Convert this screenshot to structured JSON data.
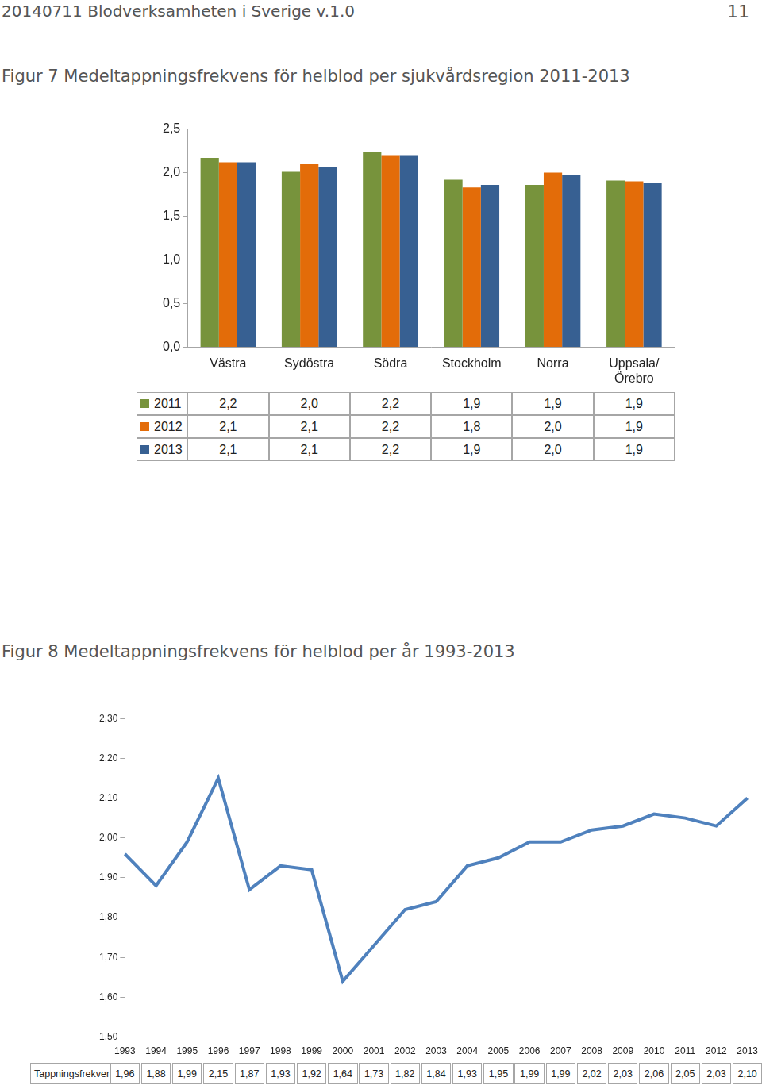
{
  "header": {
    "text": "20140711 Blodverksamheten i Sverige v.1.0",
    "page": "11"
  },
  "chart_data": [
    {
      "type": "bar",
      "title": "Figur 7 Medeltappningsfrekvens för helblod per sjukvårdsregion 2011-2013",
      "categories": [
        "Västra",
        "Sydöstra",
        "Södra",
        "Stockholm",
        "Norra",
        "Uppsala/ Örebro"
      ],
      "series": [
        {
          "name": "2011",
          "color": "#77933c",
          "values": [
            2.17,
            2.01,
            2.24,
            1.92,
            1.86,
            1.91
          ],
          "value_labels": [
            "2,2",
            "2,0",
            "2,2",
            "1,9",
            "1,9",
            "1,9"
          ]
        },
        {
          "name": "2012",
          "color": "#e36c09",
          "values": [
            2.12,
            2.1,
            2.2,
            1.83,
            2.0,
            1.9
          ],
          "value_labels": [
            "2,1",
            "2,1",
            "2,2",
            "1,8",
            "2,0",
            "1,9"
          ]
        },
        {
          "name": "2013",
          "color": "#376092",
          "values": [
            2.12,
            2.06,
            2.2,
            1.86,
            1.97,
            1.88
          ],
          "value_labels": [
            "2,1",
            "2,1",
            "2,2",
            "1,9",
            "2,0",
            "1,9"
          ]
        }
      ],
      "ylim": [
        0,
        2.5
      ],
      "yticks": [
        {
          "value": 0,
          "label": "0,0"
        },
        {
          "value": 0.5,
          "label": "0,5"
        },
        {
          "value": 1,
          "label": "1,0"
        },
        {
          "value": 1.5,
          "label": "1,5"
        },
        {
          "value": 2,
          "label": "2,0"
        },
        {
          "value": 2.5,
          "label": "2,5"
        }
      ],
      "grid": false
    },
    {
      "type": "line",
      "title": "Figur 8 Medeltappningsfrekvens för helblod per år 1993-2013",
      "categories": [
        "1993",
        "1994",
        "1995",
        "1996",
        "1997",
        "1998",
        "1999",
        "2000",
        "2001",
        "2002",
        "2003",
        "2004",
        "2005",
        "2006",
        "2007",
        "2008",
        "2009",
        "2010",
        "2011",
        "2012",
        "2013"
      ],
      "series": [
        {
          "name": "Tappningsfrekvens",
          "color": "#4f81bd",
          "marker": "none",
          "values": [
            1.96,
            1.88,
            1.99,
            2.15,
            1.87,
            1.93,
            1.92,
            1.64,
            1.73,
            1.82,
            1.84,
            1.93,
            1.95,
            1.99,
            1.99,
            2.02,
            2.03,
            2.06,
            2.05,
            2.03,
            2.1
          ],
          "value_labels": [
            "1,96",
            "1,88",
            "1,99",
            "2,15",
            "1,87",
            "1,93",
            "1,92",
            "1,64",
            "1,73",
            "1,82",
            "1,84",
            "1,93",
            "1,95",
            "1,99",
            "1,99",
            "2,02",
            "2,03",
            "2,06",
            "2,05",
            "2,03",
            "2,10"
          ]
        }
      ],
      "ylim": [
        1.5,
        2.3
      ],
      "yticks": [
        {
          "value": 1.5,
          "label": "1,50"
        },
        {
          "value": 1.6,
          "label": "1,60"
        },
        {
          "value": 1.7,
          "label": "1,70"
        },
        {
          "value": 1.8,
          "label": "1,80"
        },
        {
          "value": 1.9,
          "label": "1,90"
        },
        {
          "value": 2.0,
          "label": "2,00"
        },
        {
          "value": 2.1,
          "label": "2,10"
        },
        {
          "value": 2.2,
          "label": "2,20"
        },
        {
          "value": 2.3,
          "label": "2,30"
        }
      ],
      "grid": false
    }
  ]
}
